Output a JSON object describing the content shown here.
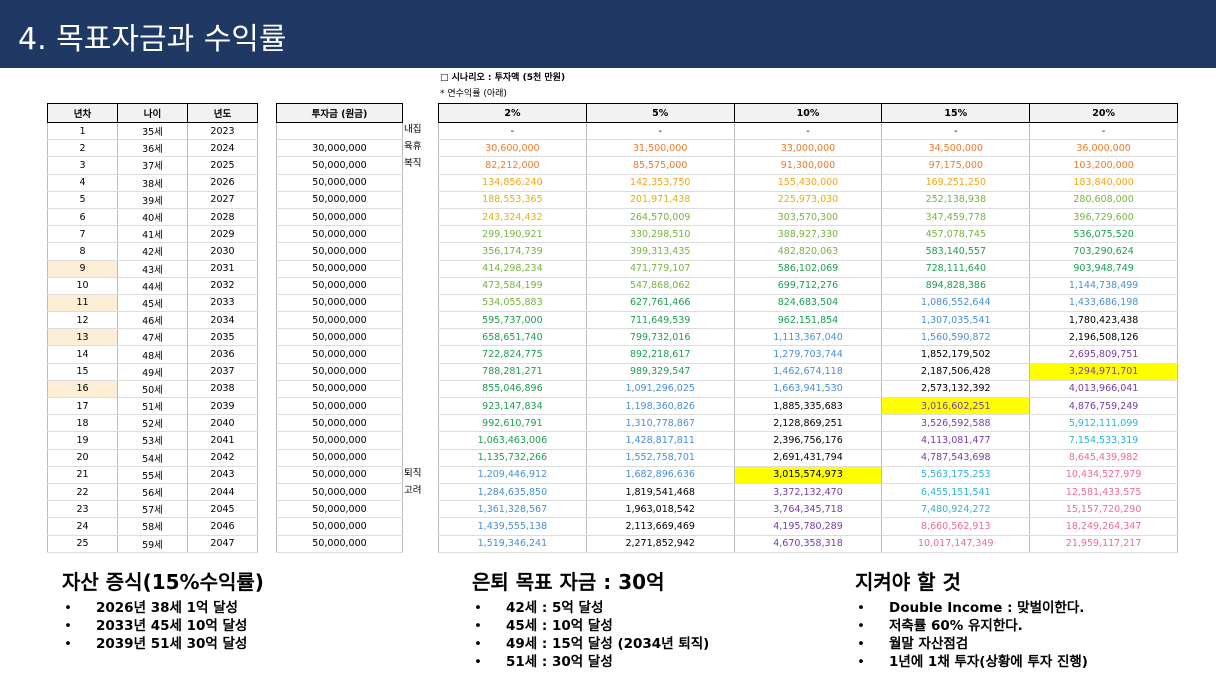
{
  "header": {
    "title": "4. 목표자금과 수익률"
  },
  "scenario": {
    "title": "□ 시나리오 : 투자액 (5천 만원)",
    "note": "* 연수익률 (아래)"
  },
  "left": {
    "headers": [
      "년차",
      "나이",
      "년도"
    ],
    "rows": [
      [
        "1",
        "35세",
        "2023"
      ],
      [
        "2",
        "36세",
        "2024"
      ],
      [
        "3",
        "37세",
        "2025"
      ],
      [
        "4",
        "38세",
        "2026"
      ],
      [
        "5",
        "39세",
        "2027"
      ],
      [
        "6",
        "40세",
        "2028"
      ],
      [
        "7",
        "41세",
        "2029"
      ],
      [
        "8",
        "42세",
        "2030"
      ],
      [
        "9",
        "43세",
        "2031"
      ],
      [
        "10",
        "44세",
        "2032"
      ],
      [
        "11",
        "45세",
        "2033"
      ],
      [
        "12",
        "46세",
        "2034"
      ],
      [
        "13",
        "47세",
        "2035"
      ],
      [
        "14",
        "48세",
        "2036"
      ],
      [
        "15",
        "49세",
        "2037"
      ],
      [
        "16",
        "50세",
        "2038"
      ],
      [
        "17",
        "51세",
        "2039"
      ],
      [
        "18",
        "52세",
        "2040"
      ],
      [
        "19",
        "53세",
        "2041"
      ],
      [
        "20",
        "54세",
        "2042"
      ],
      [
        "21",
        "55세",
        "2043"
      ],
      [
        "22",
        "56세",
        "2044"
      ],
      [
        "23",
        "57세",
        "2045"
      ],
      [
        "24",
        "58세",
        "2046"
      ],
      [
        "25",
        "59세",
        "2047"
      ]
    ],
    "highlight_rows": [
      8,
      10,
      12,
      15
    ],
    "highlight_color": "#fcefd6"
  },
  "invest": {
    "header": "투자금 (원금)",
    "rows": [
      null,
      "30,000,000",
      "50,000,000",
      "50,000,000",
      "50,000,000",
      "50,000,000",
      "50,000,000",
      "50,000,000",
      "50,000,000",
      "50,000,000",
      "50,000,000",
      "50,000,000",
      "50,000,000",
      "50,000,000",
      "50,000,000",
      "50,000,000",
      "50,000,000",
      "50,000,000",
      "50,000,000",
      "50,000,000",
      "50,000,000",
      "50,000,000",
      "50,000,000",
      "50,000,000",
      "50,000,000"
    ],
    "side_notes": [
      "내집",
      "육휴",
      "복직",
      null,
      null,
      null,
      null,
      null,
      null,
      null,
      null,
      null,
      null,
      null,
      null,
      null,
      null,
      null,
      null,
      null,
      "퇴직",
      "고려",
      null,
      null,
      null
    ]
  },
  "returns": {
    "headers": [
      "2%",
      "5%",
      "10%",
      "15%",
      "20%"
    ],
    "rows": [
      [
        "-",
        "-",
        "-",
        "-",
        "-"
      ],
      [
        "30,600,000",
        "31,500,000",
        "33,000,000",
        "34,500,000",
        "36,000,000"
      ],
      [
        "82,212,000",
        "85,575,000",
        "91,300,000",
        "97,175,000",
        "103,200,000"
      ],
      [
        "134,856,240",
        "142,353,750",
        "155,430,000",
        "169,251,250",
        "183,840,000"
      ],
      [
        "188,553,365",
        "201,971,438",
        "225,973,030",
        "252,138,938",
        "280,608,000"
      ],
      [
        "243,324,432",
        "264,570,009",
        "303,570,300",
        "347,459,778",
        "396,729,600"
      ],
      [
        "299,190,921",
        "330,298,510",
        "388,927,330",
        "457,078,745",
        "536,075,520"
      ],
      [
        "356,174,739",
        "399,313,435",
        "482,820,063",
        "583,140,557",
        "703,290,624"
      ],
      [
        "414,298,234",
        "471,779,107",
        "586,102,069",
        "728,111,640",
        "903,948,749"
      ],
      [
        "473,584,199",
        "547,868,062",
        "699,712,276",
        "894,828,386",
        "1,144,738,499"
      ],
      [
        "534,055,883",
        "627,761,466",
        "824,683,504",
        "1,086,552,644",
        "1,433,686,198"
      ],
      [
        "595,737,000",
        "711,649,539",
        "962,151,854",
        "1,307,035,541",
        "1,780,423,438"
      ],
      [
        "658,651,740",
        "799,732,016",
        "1,113,367,040",
        "1,560,590,872",
        "2,196,508,126"
      ],
      [
        "722,824,775",
        "892,218,617",
        "1,279,703,744",
        "1,852,179,502",
        "2,695,809,751"
      ],
      [
        "788,281,271",
        "989,329,547",
        "1,462,674,118",
        "2,187,506,428",
        "3,294,971,701"
      ],
      [
        "855,046,896",
        "1,091,296,025",
        "1,663,941,530",
        "2,573,132,392",
        "4,013,966,041"
      ],
      [
        "923,147,834",
        "1,198,360,826",
        "1,885,335,683",
        "3,016,602,251",
        "4,876,759,249"
      ],
      [
        "992,610,791",
        "1,310,778,867",
        "2,128,869,251",
        "3,526,592,588",
        "5,912,111,099"
      ],
      [
        "1,063,463,006",
        "1,428,817,811",
        "2,396,756,176",
        "4,113,081,477",
        "7,154,533,319"
      ],
      [
        "1,135,732,266",
        "1,552,758,701",
        "2,691,431,794",
        "4,787,543,698",
        "8,645,439,982"
      ],
      [
        "1,209,446,912",
        "1,682,896,636",
        "3,015,574,973",
        "5,563,175,253",
        "10,434,527,979"
      ],
      [
        "1,284,635,850",
        "1,819,541,468",
        "3,372,132,470",
        "6,455,151,541",
        "12,581,433,575"
      ],
      [
        "1,361,328,567",
        "1,963,018,542",
        "3,764,345,718",
        "7,480,924,272",
        "15,157,720,290"
      ],
      [
        "1,439,555,138",
        "2,113,669,469",
        "4,195,780,289",
        "8,660,562,913",
        "18,249,264,347"
      ],
      [
        "1,519,346,241",
        "2,271,852,942",
        "4,670,358,318",
        "10,017,147,349",
        "21,959,117,217"
      ]
    ],
    "colors": [
      [
        "#000000",
        "#000000",
        "#000000",
        "#000000",
        "#000000"
      ],
      [
        "#ee7a2c",
        "#ee7a2c",
        "#ee7a2c",
        "#ee7a2c",
        "#ee7a2c"
      ],
      [
        "#ee7a2c",
        "#ee7a2c",
        "#ee7a2c",
        "#ee7a2c",
        "#ee7a2c"
      ],
      [
        "#f3a51c",
        "#f3a51c",
        "#f3a51c",
        "#f3a51c",
        "#f3a51c"
      ],
      [
        "#e0b400",
        "#e0b400",
        "#e0b400",
        "#78b441",
        "#78b441"
      ],
      [
        "#e0b400",
        "#78b441",
        "#78b441",
        "#78b441",
        "#78b441"
      ],
      [
        "#78b441",
        "#78b441",
        "#78b441",
        "#78b441",
        "#1e9e50"
      ],
      [
        "#78b441",
        "#78b441",
        "#78b441",
        "#1e9e50",
        "#1e9e50"
      ],
      [
        "#78b441",
        "#78b441",
        "#1e9e50",
        "#1e9e50",
        "#1e9e50"
      ],
      [
        "#78b441",
        "#78b441",
        "#1e9e50",
        "#1e9e50",
        "#4a8fd6"
      ],
      [
        "#78b441",
        "#1e9e50",
        "#1e9e50",
        "#4a8fd6",
        "#4a8fd6"
      ],
      [
        "#1e9e50",
        "#1e9e50",
        "#1e9e50",
        "#4a8fd6",
        "#000000"
      ],
      [
        "#1e9e50",
        "#1e9e50",
        "#4a8fd6",
        "#4a8fd6",
        "#000000"
      ],
      [
        "#1e9e50",
        "#1e9e50",
        "#4a8fd6",
        "#000000",
        "#7a3aa6"
      ],
      [
        "#1e9e50",
        "#1e9e50",
        "#4a8fd6",
        "#000000",
        "#7a3aa6"
      ],
      [
        "#1e9e50",
        "#4a8fd6",
        "#4a8fd6",
        "#000000",
        "#7a3aa6"
      ],
      [
        "#1e9e50",
        "#4a8fd6",
        "#000000",
        "#7a3aa6",
        "#7a3aa6"
      ],
      [
        "#1e9e50",
        "#4a8fd6",
        "#000000",
        "#7a3aa6",
        "#2fb3d6"
      ],
      [
        "#1e9e50",
        "#4a8fd6",
        "#000000",
        "#7a3aa6",
        "#2fb3d6"
      ],
      [
        "#1e9e50",
        "#4a8fd6",
        "#000000",
        "#7a3aa6",
        "#ef6a9a"
      ],
      [
        "#4a8fd6",
        "#4a8fd6",
        "#000000",
        "#2fb3d6",
        "#ef6a9a"
      ],
      [
        "#4a8fd6",
        "#000000",
        "#7a3aa6",
        "#2fb3d6",
        "#ef6a9a"
      ],
      [
        "#4a8fd6",
        "#000000",
        "#7a3aa6",
        "#2fb3d6",
        "#ef6a9a"
      ],
      [
        "#4a8fd6",
        "#000000",
        "#7a3aa6",
        "#ef6a9a",
        "#ef6a9a"
      ],
      [
        "#4a8fd6",
        "#000000",
        "#7a3aa6",
        "#ef6a9a",
        "#ef6a9a"
      ]
    ],
    "highlights": [
      [
        14,
        4
      ],
      [
        16,
        3
      ],
      [
        20,
        2
      ]
    ],
    "highlight_color": "#ffff00"
  },
  "sections": [
    {
      "title": "자산 증식(15%수익률)",
      "items": [
        "2026년 38세 1억 달성",
        "2033년 45세 10억 달성",
        "2039년 51세 30억 달성"
      ]
    },
    {
      "title": "은퇴 목표 자금 : 30억",
      "items": [
        "42세 : 5억 달성",
        "45세 : 10억 달성",
        "49세 : 15억 달성 (2034년 퇴직)",
        "51세 : 30억 달성"
      ]
    },
    {
      "title": "지켜야 할 것",
      "items": [
        "Double Income : 맞벌이한다.",
        "저축률 60% 유지한다.",
        "월말 자산점검",
        "1년에 1채 투자(상황에 투자 진행)"
      ]
    }
  ]
}
